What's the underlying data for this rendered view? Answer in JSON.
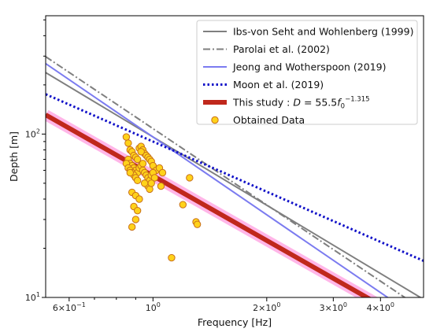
{
  "chart_data": {
    "type": "scatter",
    "xscale": "log",
    "yscale": "log",
    "xlim": [
      0.52,
      5.2
    ],
    "ylim": [
      10,
      530
    ],
    "xlabel": "Frequency [Hz]",
    "ylabel": "Depth [m]",
    "grid": false,
    "legend_position": "top-right",
    "x_ticks": [
      {
        "value": 0.6,
        "base": "6",
        "exp": "−1"
      },
      {
        "value": 1,
        "base": "10",
        "exp": "0"
      },
      {
        "value": 2,
        "base": "2",
        "exp": "0"
      },
      {
        "value": 3,
        "base": "3",
        "exp": "0"
      },
      {
        "value": 4,
        "base": "4",
        "exp": "0"
      }
    ],
    "y_ticks": [
      {
        "value": 10,
        "base": "10",
        "exp": "1"
      },
      {
        "value": 100,
        "base": "10",
        "exp": "2"
      }
    ],
    "series": [
      {
        "name": "Ibs-von Seht and Wohlenberg (1999)",
        "kind": "line",
        "style": "solid",
        "color": "#7f7f7f",
        "a": 96,
        "b": -1.388,
        "x_range": [
          0.52,
          5.2
        ]
      },
      {
        "name": "Parolai et al. (2002)",
        "kind": "line",
        "style": "dashdot",
        "color": "#7f7f7f",
        "a": 108,
        "b": -1.551,
        "x_range": [
          0.52,
          5.2
        ]
      },
      {
        "name": "Jeong and Wotherspoon (2019)",
        "kind": "line",
        "style": "solid",
        "color": "#7b7bf0",
        "a": 96,
        "b": -1.582,
        "x_range": [
          0.52,
          5.2
        ]
      },
      {
        "name": "Moon et al. (2019)",
        "kind": "line",
        "style": "dotted",
        "color": "#1010c8",
        "a": 90,
        "b": -1.02,
        "x_range": [
          0.52,
          5.2
        ]
      },
      {
        "name": "This study : ",
        "formula": {
          "lhs": "D",
          "coef": " = 55.5",
          "var": "f",
          "sub": "0",
          "exp": "−1.315"
        },
        "kind": "line",
        "style": "solid",
        "color": "#c0281c",
        "a": 55.5,
        "b": -1.315,
        "x_range": [
          0.52,
          4.0
        ]
      },
      {
        "name": "Obtained Data",
        "kind": "scatter",
        "color": "#ffd21a",
        "edge": "#c8701a",
        "points": [
          [
            0.85,
            96
          ],
          [
            0.86,
            88
          ],
          [
            0.87,
            80
          ],
          [
            0.88,
            78
          ],
          [
            0.89,
            74
          ],
          [
            0.9,
            72
          ],
          [
            0.91,
            70
          ],
          [
            0.92,
            82
          ],
          [
            0.93,
            84
          ],
          [
            0.94,
            80
          ],
          [
            0.95,
            76
          ],
          [
            0.96,
            74
          ],
          [
            0.97,
            72
          ],
          [
            0.98,
            70
          ],
          [
            0.99,
            68
          ],
          [
            1.0,
            64
          ],
          [
            1.02,
            60
          ],
          [
            1.04,
            62
          ],
          [
            1.06,
            58
          ],
          [
            0.86,
            70
          ],
          [
            0.87,
            66
          ],
          [
            0.88,
            64
          ],
          [
            0.89,
            62
          ],
          [
            0.9,
            60
          ],
          [
            0.91,
            58
          ],
          [
            0.92,
            62
          ],
          [
            0.93,
            64
          ],
          [
            0.94,
            60
          ],
          [
            0.95,
            58
          ],
          [
            0.96,
            56
          ],
          [
            0.97,
            54
          ],
          [
            0.98,
            52
          ],
          [
            0.99,
            56
          ],
          [
            1.0,
            58
          ],
          [
            1.01,
            54
          ],
          [
            0.85,
            66
          ],
          [
            0.86,
            62
          ],
          [
            0.87,
            60
          ],
          [
            0.88,
            58
          ],
          [
            0.89,
            56
          ],
          [
            0.9,
            54
          ],
          [
            0.91,
            52
          ],
          [
            0.97,
            48
          ],
          [
            0.98,
            46
          ],
          [
            0.99,
            50
          ],
          [
            1.05,
            48
          ],
          [
            0.95,
            50
          ],
          [
            0.88,
            44
          ],
          [
            0.9,
            42
          ],
          [
            0.92,
            40
          ],
          [
            0.89,
            36
          ],
          [
            0.91,
            34
          ],
          [
            0.9,
            30
          ],
          [
            0.88,
            27
          ],
          [
            1.2,
            37
          ],
          [
            1.25,
            54
          ],
          [
            1.3,
            29
          ],
          [
            1.31,
            28
          ],
          [
            1.12,
            17.5
          ],
          [
            0.93,
            78
          ],
          [
            0.87,
            58
          ],
          [
            0.94,
            66
          ]
        ]
      }
    ]
  }
}
